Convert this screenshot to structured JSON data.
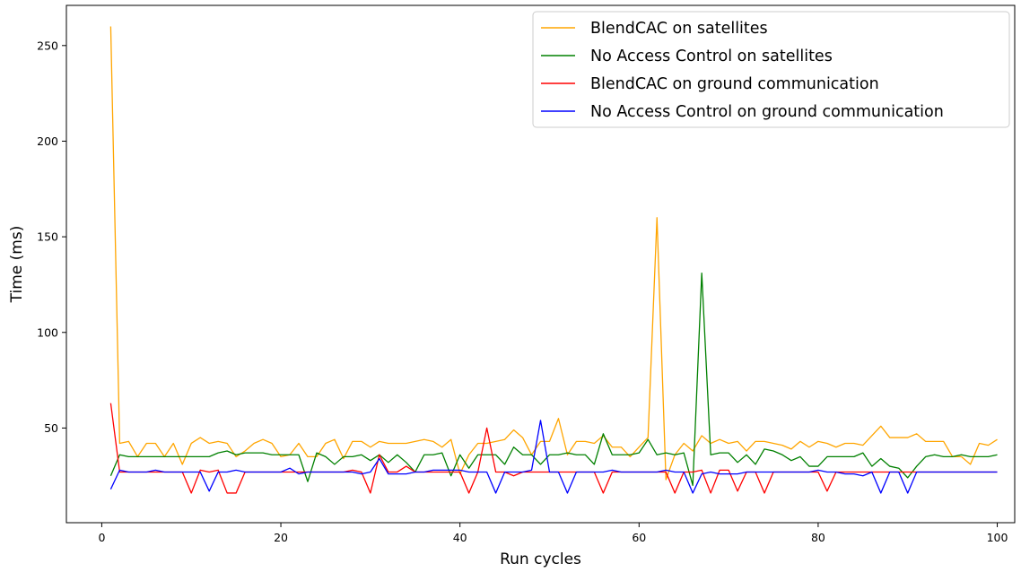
{
  "chart_data": {
    "type": "line",
    "xlabel": "Run cycles",
    "ylabel": "Time (ms)",
    "xlim": [
      -3.95,
      101.95
    ],
    "ylim": [
      0.5,
      271
    ],
    "xticks": [
      0,
      20,
      40,
      60,
      80,
      100
    ],
    "yticks": [
      50,
      100,
      150,
      200,
      250
    ],
    "grid": false,
    "legend_position": "top-right",
    "x": [
      1,
      2,
      3,
      4,
      5,
      6,
      7,
      8,
      9,
      10,
      11,
      12,
      13,
      14,
      15,
      16,
      17,
      18,
      19,
      20,
      21,
      22,
      23,
      24,
      25,
      26,
      27,
      28,
      29,
      30,
      31,
      32,
      33,
      34,
      35,
      36,
      37,
      38,
      39,
      40,
      41,
      42,
      43,
      44,
      45,
      46,
      47,
      48,
      49,
      50,
      51,
      52,
      53,
      54,
      55,
      56,
      57,
      58,
      59,
      60,
      61,
      62,
      63,
      64,
      65,
      66,
      67,
      68,
      69,
      70,
      71,
      72,
      73,
      74,
      75,
      76,
      77,
      78,
      79,
      80,
      81,
      82,
      83,
      84,
      85,
      86,
      87,
      88,
      89,
      90,
      91,
      92,
      93,
      94,
      95,
      96,
      97,
      98,
      99,
      100
    ],
    "series": [
      {
        "name": "BlendCAC on satellites",
        "color": "#ffa500",
        "values": [
          260,
          42,
          43,
          35,
          42,
          42,
          35,
          42,
          31,
          42,
          45,
          42,
          43,
          42,
          35,
          38,
          42,
          44,
          42,
          35,
          36,
          42,
          35,
          35,
          42,
          44,
          34,
          43,
          43,
          40,
          43,
          42,
          42,
          42,
          43,
          44,
          43,
          40,
          44,
          26,
          36,
          42,
          42,
          43,
          44,
          49,
          45,
          36,
          43,
          43,
          55,
          36,
          43,
          43,
          42,
          46,
          40,
          40,
          35,
          40,
          45,
          160,
          23,
          36,
          42,
          38,
          46,
          42,
          44,
          42,
          43,
          38,
          43,
          43,
          42,
          41,
          39,
          43,
          40,
          43,
          42,
          40,
          42,
          42,
          41,
          46,
          51,
          45,
          45,
          45,
          47,
          43,
          43,
          43,
          35,
          35,
          31,
          42,
          41,
          44
        ]
      },
      {
        "name": "No Access Control on satellites",
        "color": "#008000",
        "values": [
          25,
          36,
          35,
          35,
          35,
          35,
          35,
          35,
          35,
          35,
          35,
          35,
          37,
          38,
          36,
          37,
          37,
          37,
          36,
          36,
          36,
          36,
          22,
          37,
          35,
          31,
          35,
          35,
          36,
          33,
          36,
          32,
          36,
          32,
          27,
          36,
          36,
          37,
          25,
          36,
          29,
          36,
          36,
          36,
          31,
          40,
          36,
          36,
          31,
          36,
          36,
          37,
          36,
          36,
          31,
          47,
          36,
          36,
          36,
          37,
          44,
          36,
          37,
          36,
          37,
          20,
          131,
          36,
          37,
          37,
          32,
          36,
          31,
          39,
          38,
          36,
          33,
          35,
          30,
          30,
          35,
          35,
          35,
          35,
          37,
          30,
          34,
          30,
          29,
          24,
          30,
          35,
          36,
          35,
          35,
          36,
          35,
          35,
          35,
          36
        ]
      },
      {
        "name": "BlendCAC on ground communication",
        "color": "#ff0000",
        "values": [
          63,
          27,
          27,
          27,
          27,
          27,
          27,
          27,
          27,
          16,
          28,
          27,
          28,
          16,
          16,
          27,
          27,
          27,
          27,
          27,
          27,
          27,
          27,
          27,
          27,
          27,
          27,
          28,
          27,
          16,
          36,
          27,
          27,
          30,
          27,
          27,
          27,
          27,
          27,
          27,
          16,
          27,
          50,
          27,
          27,
          25,
          27,
          27,
          27,
          27,
          27,
          27,
          27,
          27,
          27,
          16,
          27,
          27,
          27,
          27,
          27,
          27,
          27,
          16,
          27,
          27,
          28,
          16,
          28,
          28,
          17,
          27,
          27,
          16,
          27,
          27,
          27,
          27,
          27,
          27,
          17,
          27,
          27,
          27,
          27,
          27,
          27,
          27,
          27,
          27,
          27,
          27,
          27,
          27,
          27,
          27,
          27,
          27,
          27,
          27
        ]
      },
      {
        "name": "No Access Control on ground communication",
        "color": "#0000ff",
        "values": [
          18,
          28,
          27,
          27,
          27,
          28,
          27,
          27,
          27,
          27,
          27,
          17,
          27,
          27,
          28,
          27,
          27,
          27,
          27,
          27,
          29,
          26,
          27,
          27,
          27,
          27,
          27,
          27,
          26,
          27,
          34,
          26,
          26,
          26,
          27,
          27,
          28,
          28,
          28,
          28,
          27,
          27,
          27,
          16,
          27,
          27,
          27,
          28,
          54,
          27,
          27,
          16,
          27,
          27,
          27,
          27,
          28,
          27,
          27,
          27,
          27,
          27,
          28,
          27,
          27,
          16,
          26,
          27,
          26,
          26,
          26,
          27,
          27,
          27,
          27,
          27,
          27,
          27,
          27,
          28,
          27,
          27,
          26,
          26,
          25,
          27,
          16,
          27,
          27,
          16,
          27,
          27,
          27,
          27,
          27,
          27,
          27,
          27,
          27,
          27
        ]
      }
    ]
  }
}
